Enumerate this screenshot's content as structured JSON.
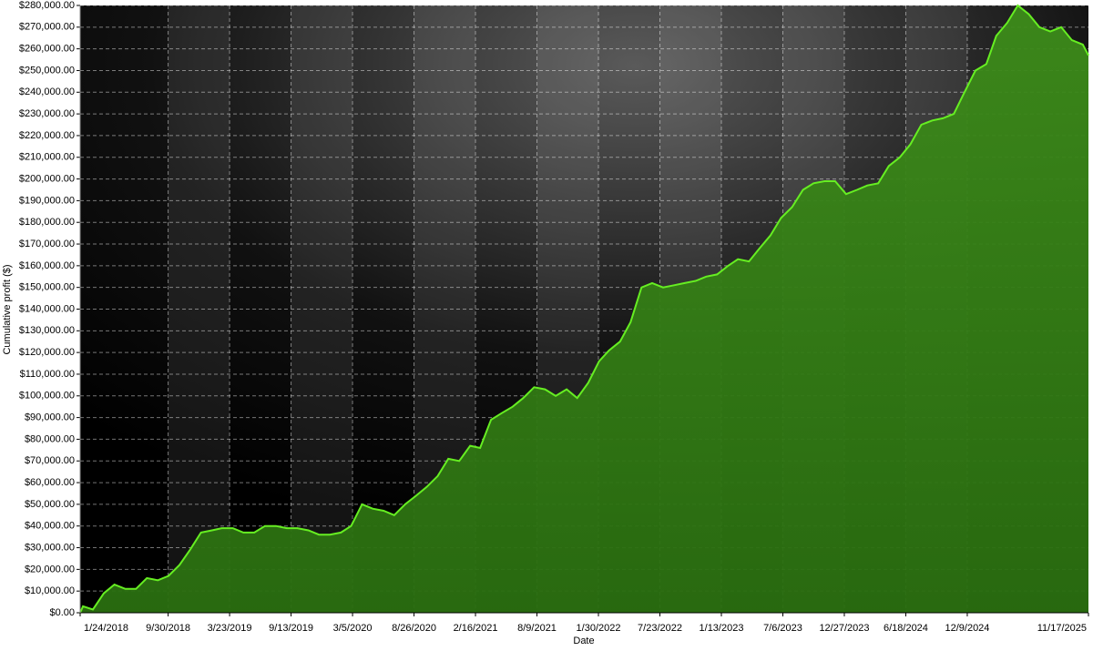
{
  "chart_data": {
    "type": "area",
    "y_label": "Cumulative profit ($)",
    "x_label": "Date",
    "color": "#66ee22",
    "fill": "#3d8c1a",
    "grid": true,
    "x": [
      "1/24/2018",
      "2/1/2018",
      "3/1/2018",
      "4/1/2018",
      "5/1/2018",
      "6/1/2018",
      "7/1/2018",
      "8/1/2018",
      "9/1/2018",
      "10/1/2018",
      "11/1/2018",
      "12/1/2018",
      "1/1/2019",
      "2/1/2019",
      "3/1/2019",
      "4/1/2019",
      "5/1/2019",
      "6/1/2019",
      "7/1/2019",
      "8/1/2019",
      "9/1/2019",
      "10/1/2019",
      "11/1/2019",
      "12/1/2019",
      "1/1/2020",
      "2/1/2020",
      "3/1/2020",
      "4/1/2020",
      "5/1/2020",
      "6/1/2020",
      "7/1/2020",
      "8/1/2020",
      "9/1/2020",
      "10/1/2020",
      "11/1/2020",
      "12/1/2020",
      "1/1/2021",
      "2/1/2021",
      "3/1/2021",
      "4/1/2021",
      "5/1/2021",
      "6/1/2021",
      "7/1/2021",
      "8/1/2021",
      "9/1/2021",
      "10/1/2021",
      "11/1/2021",
      "12/1/2021",
      "1/1/2022",
      "2/1/2022",
      "3/1/2022",
      "4/1/2022",
      "5/1/2022",
      "6/1/2022",
      "7/1/2022",
      "8/1/2022",
      "9/1/2022",
      "10/1/2022",
      "11/1/2022",
      "12/1/2022",
      "1/1/2023",
      "2/1/2023",
      "3/1/2023",
      "4/1/2023",
      "5/1/2023",
      "6/1/2023",
      "7/1/2023",
      "8/1/2023",
      "9/1/2023",
      "10/1/2023",
      "11/1/2023",
      "12/1/2023",
      "1/1/2024",
      "2/1/2024",
      "3/1/2024",
      "4/1/2024",
      "5/1/2024",
      "6/1/2024",
      "7/1/2024",
      "8/1/2024",
      "9/1/2024",
      "10/1/2024",
      "11/1/2024",
      "12/1/2024",
      "1/1/2025",
      "2/1/2025",
      "3/1/2025",
      "4/1/2025",
      "5/1/2025",
      "6/1/2025",
      "7/1/2025",
      "8/1/2025",
      "9/1/2025",
      "10/1/2025",
      "11/1/2025",
      "11/17/2025"
    ],
    "values": [
      0,
      3000,
      1500,
      9000,
      13000,
      11000,
      11000,
      16000,
      15000,
      17000,
      22000,
      29000,
      37000,
      38000,
      39000,
      39000,
      37000,
      37000,
      40000,
      40000,
      39000,
      39000,
      38000,
      36000,
      36000,
      37000,
      40000,
      50000,
      48000,
      47000,
      45000,
      50000,
      54000,
      58000,
      63000,
      71000,
      70000,
      77000,
      76000,
      89000,
      92000,
      95000,
      99000,
      104000,
      103000,
      100000,
      103000,
      99000,
      106000,
      116000,
      121000,
      125000,
      134000,
      150000,
      152000,
      150000,
      151000,
      152000,
      153000,
      155000,
      156000,
      160000,
      163000,
      162000,
      168000,
      174000,
      182000,
      187000,
      195000,
      198000,
      199000,
      199000,
      193000,
      195000,
      197000,
      198000,
      206000,
      210000,
      216000,
      225000,
      227000,
      228000,
      230000,
      240000,
      250000,
      253000,
      266000,
      272000,
      280000,
      276000,
      270000,
      268000,
      270000,
      264000,
      262000,
      257000
    ],
    "xlim": [
      "1/24/2018",
      "11/17/2025"
    ],
    "xticks": [
      "1/24/2018",
      "9/30/2018",
      "3/23/2019",
      "9/13/2019",
      "3/5/2020",
      "8/26/2020",
      "2/16/2021",
      "8/9/2021",
      "1/30/2022",
      "7/23/2022",
      "1/13/2023",
      "7/6/2023",
      "12/27/2023",
      "6/18/2024",
      "12/9/2024",
      "11/17/2025"
    ],
    "ylim": [
      0,
      280000
    ],
    "yticks": [
      {
        "value": 0,
        "label": "$0.00"
      },
      {
        "value": 10000,
        "label": "$10,000.00"
      },
      {
        "value": 20000,
        "label": "$20,000.00"
      },
      {
        "value": 30000,
        "label": "$30,000.00"
      },
      {
        "value": 40000,
        "label": "$40,000.00"
      },
      {
        "value": 50000,
        "label": "$50,000.00"
      },
      {
        "value": 60000,
        "label": "$60,000.00"
      },
      {
        "value": 70000,
        "label": "$70,000.00"
      },
      {
        "value": 80000,
        "label": "$80,000.00"
      },
      {
        "value": 90000,
        "label": "$90,000.00"
      },
      {
        "value": 100000,
        "label": "$100,000.00"
      },
      {
        "value": 110000,
        "label": "$110,000.00"
      },
      {
        "value": 120000,
        "label": "$120,000.00"
      },
      {
        "value": 130000,
        "label": "$130,000.00"
      },
      {
        "value": 140000,
        "label": "$140,000.00"
      },
      {
        "value": 150000,
        "label": "$150,000.00"
      },
      {
        "value": 160000,
        "label": "$160,000.00"
      },
      {
        "value": 170000,
        "label": "$170,000.00"
      },
      {
        "value": 180000,
        "label": "$180,000.00"
      },
      {
        "value": 190000,
        "label": "$190,000.00"
      },
      {
        "value": 200000,
        "label": "$200,000.00"
      },
      {
        "value": 210000,
        "label": "$210,000.00"
      },
      {
        "value": 220000,
        "label": "$220,000.00"
      },
      {
        "value": 230000,
        "label": "$230,000.00"
      },
      {
        "value": 240000,
        "label": "$240,000.00"
      },
      {
        "value": 250000,
        "label": "$250,000.00"
      },
      {
        "value": 260000,
        "label": "$260,000.00"
      },
      {
        "value": 270000,
        "label": "$270,000.00"
      },
      {
        "value": 280000,
        "label": "$280,000.00"
      }
    ]
  }
}
